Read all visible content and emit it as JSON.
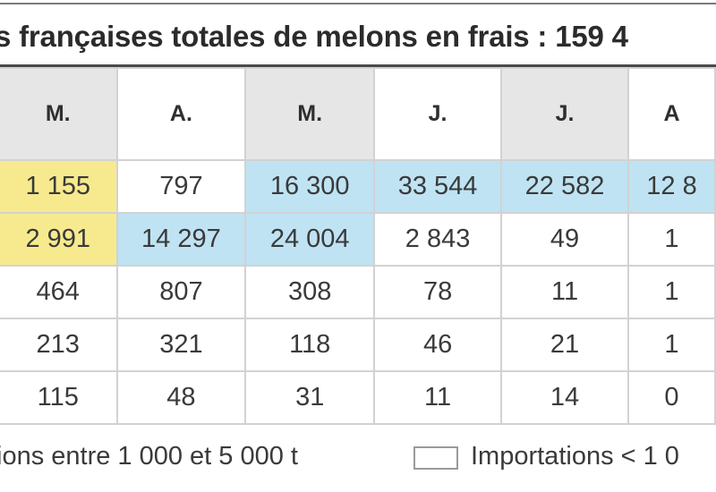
{
  "title": "s françaises totales de melons en frais : 159 4",
  "table": {
    "headers": [
      "M.",
      "A.",
      "M.",
      "J.",
      "J.",
      "A"
    ],
    "rows": [
      [
        "1 155",
        "797",
        "16 300",
        "33 544",
        "22 582",
        "12 8"
      ],
      [
        "2 991",
        "14 297",
        "24 004",
        "2 843",
        "49",
        "1"
      ],
      [
        "464",
        "807",
        "308",
        "78",
        "11",
        "1"
      ],
      [
        "213",
        "321",
        "118",
        "46",
        "21",
        "1"
      ],
      [
        "115",
        "48",
        "31",
        "11",
        "14",
        "0"
      ]
    ]
  },
  "legend": {
    "range_label": "ions entre 1 000 et 5 000 t",
    "below_label": "Importations < 1 0"
  },
  "colors": {
    "yellow_cell": "#f7ea8e",
    "blue_cell": "#bfe3f3",
    "header_shade": "#e6e6e6"
  }
}
